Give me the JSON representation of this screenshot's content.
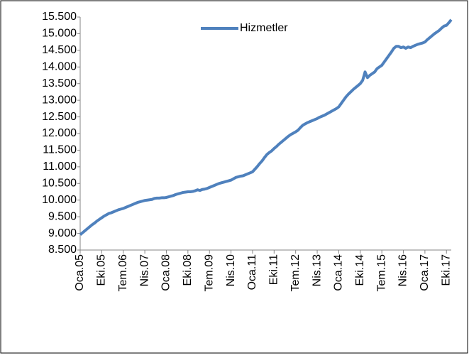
{
  "chart_data": {
    "type": "line",
    "categories": [
      "Oca.05",
      null,
      null,
      null,
      null,
      null,
      null,
      null,
      null,
      "Eki.05",
      null,
      null,
      null,
      null,
      null,
      null,
      null,
      null,
      "Tem.06",
      null,
      null,
      null,
      null,
      null,
      null,
      null,
      null,
      "Nis.07",
      null,
      null,
      null,
      null,
      null,
      null,
      null,
      null,
      "Oca.08",
      null,
      null,
      null,
      null,
      null,
      null,
      null,
      null,
      "Eki.08",
      null,
      null,
      null,
      null,
      null,
      null,
      null,
      null,
      "Tem.09",
      null,
      null,
      null,
      null,
      null,
      null,
      null,
      null,
      "Nis.10",
      null,
      null,
      null,
      null,
      null,
      null,
      null,
      null,
      "Oca.11",
      null,
      null,
      null,
      null,
      null,
      null,
      null,
      null,
      "Eki.11",
      null,
      null,
      null,
      null,
      null,
      null,
      null,
      null,
      "Tem.12",
      null,
      null,
      null,
      null,
      null,
      null,
      null,
      null,
      "Nis.13",
      null,
      null,
      null,
      null,
      null,
      null,
      null,
      null,
      "Oca.14",
      null,
      null,
      null,
      null,
      null,
      null,
      null,
      null,
      "Eki.14",
      null,
      null,
      null,
      null,
      null,
      null,
      null,
      null,
      "Tem.15",
      null,
      null,
      null,
      null,
      null,
      null,
      null,
      null,
      "Nis.16",
      null,
      null,
      null,
      null,
      null,
      null,
      null,
      null,
      "Oca.17",
      null,
      null,
      null,
      null,
      null,
      null,
      null,
      null,
      "Eki.17",
      null,
      null
    ],
    "series": [
      {
        "name": "Hizmetler",
        "color": "#4f81bd",
        "values": [
          8960,
          9020,
          9080,
          9140,
          9200,
          9260,
          9310,
          9370,
          9420,
          9470,
          9520,
          9560,
          9600,
          9620,
          9650,
          9680,
          9710,
          9730,
          9750,
          9780,
          9810,
          9840,
          9870,
          9900,
          9930,
          9950,
          9970,
          9990,
          10000,
          10010,
          10020,
          10050,
          10060,
          10060,
          10070,
          10070,
          10080,
          10100,
          10120,
          10140,
          10170,
          10190,
          10210,
          10230,
          10240,
          10250,
          10250,
          10260,
          10280,
          10310,
          10290,
          10320,
          10330,
          10350,
          10380,
          10410,
          10440,
          10470,
          10500,
          10520,
          10540,
          10560,
          10580,
          10600,
          10640,
          10680,
          10700,
          10720,
          10730,
          10760,
          10790,
          10820,
          10850,
          10930,
          11010,
          11100,
          11180,
          11280,
          11370,
          11430,
          11480,
          11550,
          11610,
          11680,
          11740,
          11800,
          11860,
          11920,
          11970,
          12010,
          12050,
          12100,
          12180,
          12250,
          12290,
          12330,
          12360,
          12390,
          12420,
          12450,
          12490,
          12520,
          12550,
          12590,
          12630,
          12670,
          12710,
          12750,
          12800,
          12900,
          13000,
          13100,
          13180,
          13250,
          13320,
          13380,
          13440,
          13500,
          13600,
          13850,
          13680,
          13750,
          13800,
          13850,
          13950,
          14000,
          14050,
          14150,
          14250,
          14350,
          14450,
          14560,
          14620,
          14620,
          14580,
          14600,
          14560,
          14600,
          14580,
          14620,
          14650,
          14680,
          14700,
          14720,
          14750,
          14820,
          14880,
          14940,
          15000,
          15050,
          15100,
          15170,
          15230,
          15250,
          15330,
          15420
        ]
      }
    ],
    "ylim": [
      8500,
      15500
    ],
    "yticks": [
      {
        "value": 8500,
        "label": "8.500"
      },
      {
        "value": 9000,
        "label": "9.000"
      },
      {
        "value": 9500,
        "label": "9.500"
      },
      {
        "value": 10000,
        "label": "10.000"
      },
      {
        "value": 10500,
        "label": "10.500"
      },
      {
        "value": 11000,
        "label": "11.000"
      },
      {
        "value": 11500,
        "label": "11.500"
      },
      {
        "value": 12000,
        "label": "12.000"
      },
      {
        "value": 12500,
        "label": "12.500"
      },
      {
        "value": 13000,
        "label": "13.000"
      },
      {
        "value": 13500,
        "label": "13.500"
      },
      {
        "value": 14000,
        "label": "14.000"
      },
      {
        "value": 14500,
        "label": "14.500"
      },
      {
        "value": 15000,
        "label": "15.000"
      },
      {
        "value": 15500,
        "label": "15.500"
      }
    ],
    "grid": false,
    "legend": "top"
  }
}
